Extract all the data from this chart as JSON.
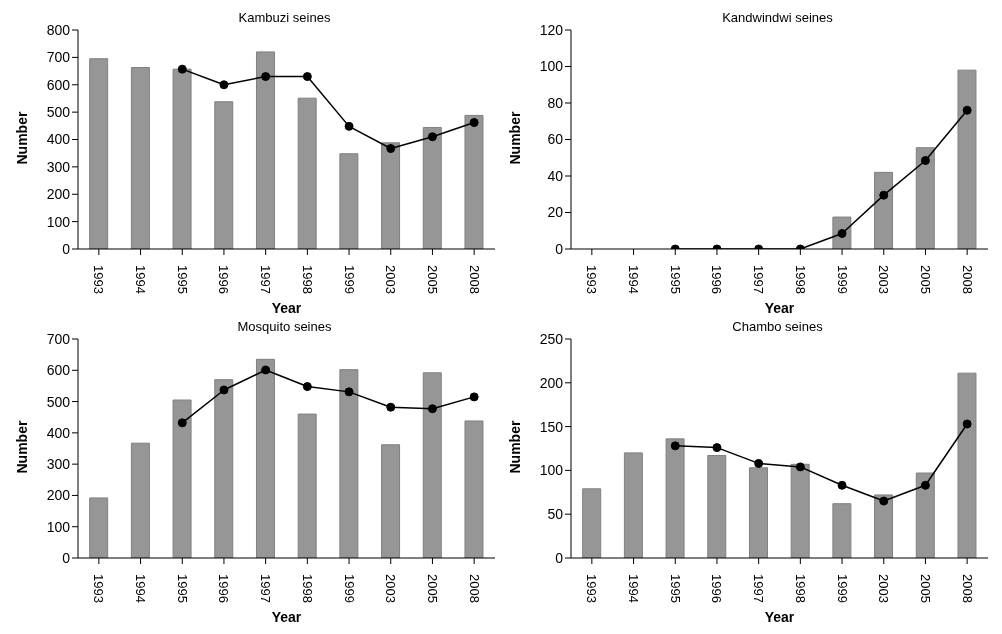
{
  "chart_data": [
    {
      "type": "bar",
      "title": "Kambuzi seines",
      "xlabel": "Year",
      "ylabel": "Number",
      "categories": [
        "1993",
        "1994",
        "1995",
        "1996",
        "1997",
        "1998",
        "1999",
        "2003",
        "2005",
        "2008"
      ],
      "series": [
        {
          "color": "#969696",
          "values": [
            695,
            663,
            657,
            538,
            720,
            551,
            348,
            388,
            444,
            488
          ]
        },
        {
          "type": "line",
          "color": "#000000",
          "values": [
            null,
            null,
            657,
            600,
            630,
            630,
            448,
            367,
            410,
            462
          ]
        }
      ],
      "ylim": [
        0,
        800
      ],
      "yticks": [
        0,
        100,
        200,
        300,
        400,
        500,
        600,
        700,
        800
      ],
      "grid": false,
      "legend": false,
      "marker": "circle"
    },
    {
      "type": "bar",
      "title": "Kandwindwi seines",
      "xlabel": "Year",
      "ylabel": "Number",
      "categories": [
        "1993",
        "1994",
        "1995",
        "1996",
        "1997",
        "1998",
        "1999",
        "2003",
        "2005",
        "2008"
      ],
      "series": [
        {
          "color": "#969696",
          "values": [
            null,
            null,
            null,
            null,
            null,
            null,
            17.5,
            42,
            55.5,
            98
          ]
        },
        {
          "type": "line",
          "color": "#000000",
          "values": [
            null,
            null,
            0,
            0,
            0,
            0,
            8.5,
            29.5,
            48.5,
            76
          ]
        }
      ],
      "ylim": [
        0,
        120
      ],
      "yticks": [
        0,
        20,
        40,
        60,
        80,
        100,
        120
      ],
      "grid": false,
      "legend": false,
      "marker": "circle"
    },
    {
      "type": "bar",
      "title": "Mosquito seines",
      "xlabel": "Year",
      "ylabel": "Number",
      "categories": [
        "1993",
        "1994",
        "1995",
        "1996",
        "1997",
        "1998",
        "1999",
        "2003",
        "2005",
        "2008"
      ],
      "series": [
        {
          "color": "#969696",
          "values": [
            192,
            367,
            505,
            570,
            635,
            460,
            602,
            362,
            592,
            438
          ]
        },
        {
          "type": "line",
          "color": "#000000",
          "values": [
            null,
            null,
            432,
            537,
            601,
            548,
            531,
            482,
            477,
            515
          ]
        }
      ],
      "ylim": [
        0,
        700
      ],
      "yticks": [
        0,
        100,
        200,
        300,
        400,
        500,
        600,
        700
      ],
      "grid": false,
      "legend": false,
      "marker": "circle"
    },
    {
      "type": "bar",
      "title": "Chambo seines",
      "xlabel": "Year",
      "ylabel": "Number",
      "categories": [
        "1993",
        "1994",
        "1995",
        "1996",
        "1997",
        "1998",
        "1999",
        "2003",
        "2005",
        "2008"
      ],
      "series": [
        {
          "color": "#969696",
          "values": [
            79,
            120,
            136,
            117,
            103,
            107,
            62,
            72,
            97,
            211
          ]
        },
        {
          "type": "line",
          "color": "#000000",
          "values": [
            null,
            null,
            128,
            126,
            108,
            104,
            83,
            65,
            83,
            153
          ]
        }
      ],
      "ylim": [
        0,
        250
      ],
      "yticks": [
        0,
        50,
        100,
        150,
        200,
        250
      ],
      "grid": false,
      "legend": false,
      "marker": "circle"
    }
  ]
}
